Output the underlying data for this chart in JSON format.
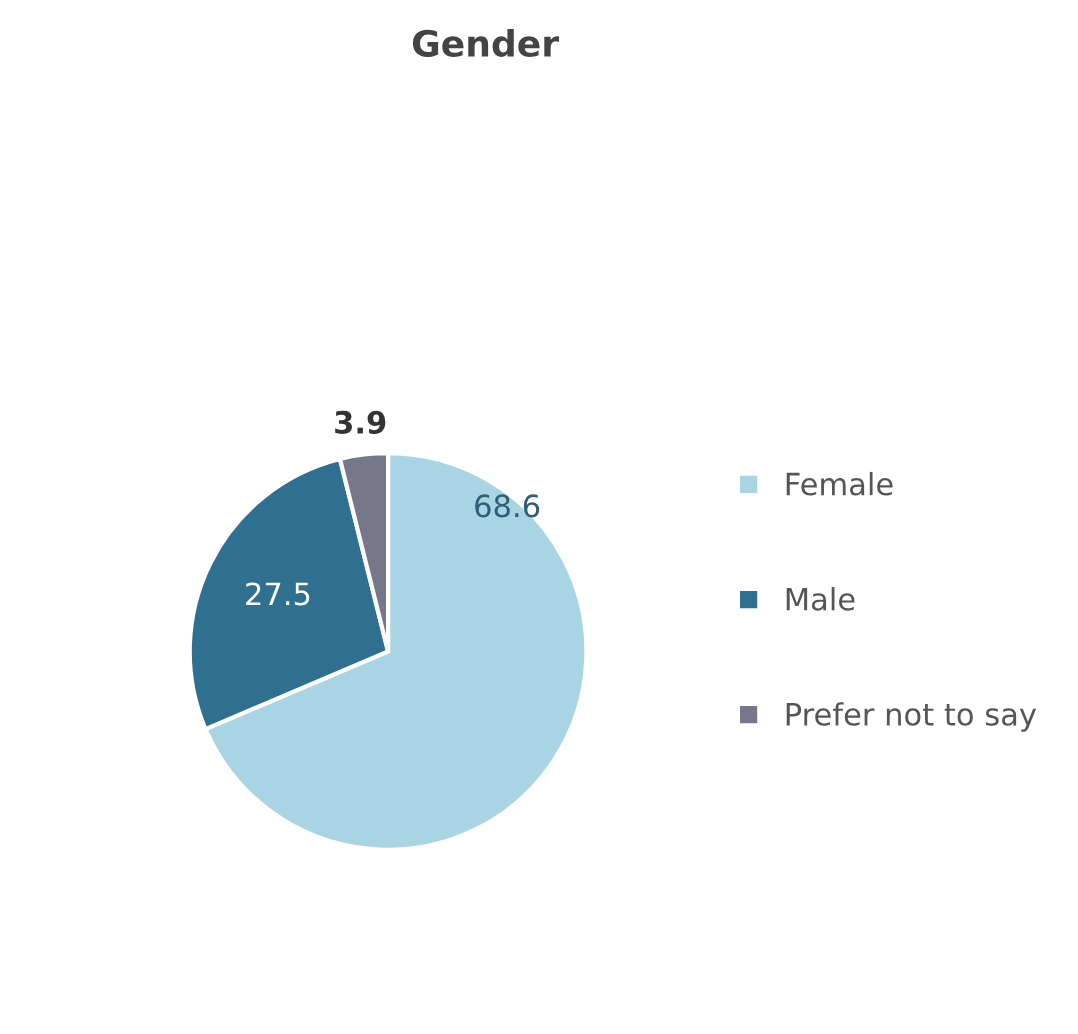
{
  "chart_data": {
    "type": "pie",
    "title": "Gender",
    "categories": [
      "Female",
      "Male",
      "Prefer not to say"
    ],
    "values": [
      68.6,
      27.5,
      3.9
    ],
    "colors": [
      "#a9d4e4",
      "#2f6f8f",
      "#76788a"
    ],
    "data_labels": true,
    "legend": "right"
  }
}
